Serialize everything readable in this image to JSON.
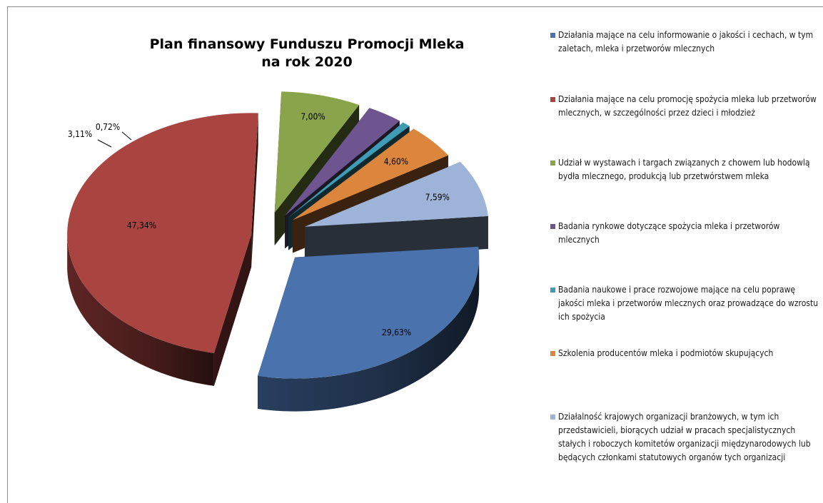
{
  "chart_data": {
    "type": "pie",
    "title_lines": [
      "Plan finansowy Funduszu Promocji Mleka",
      "na rok 2020"
    ],
    "legend_position": "right",
    "slices": [
      {
        "label": "Działania mające na celu informowanie o jakości i cechach, w tym zaletach, mleka i przetworów mlecznych",
        "value": 29.63,
        "display": "29,63%",
        "color": "#4a72ac"
      },
      {
        "label": "Działania mające na celu promocję spożycia mleka lub przetworów mlecznych, w szczególności przez dzieci i młodzież",
        "value": 47.34,
        "display": "47,34%",
        "color": "#a94441"
      },
      {
        "label": "Udział w wystawach i targach związanych z chowem lub hodowlą bydła mlecznego, produkcją lub przetwórstwem mleka",
        "value": 7.0,
        "display": "7,00%",
        "color": "#89a44a"
      },
      {
        "label": "Badania rynkowe dotyczące spożycia mleka i przetworów mlecznych",
        "value": 3.11,
        "display": "3,11%",
        "color": "#6e558f"
      },
      {
        "label": "Badania naukowe i prace rozwojowe mające na celu poprawę jakości mleka i przetworów mlecznych oraz prowadzące do wzrostu ich spożycia",
        "value": 0.72,
        "display": "0,72%",
        "color": "#3e9cb4"
      },
      {
        "label": "Szkolenia producentów mleka i podmiotów skupujących",
        "value": 4.6,
        "display": "4,60%",
        "color": "#dc853c"
      },
      {
        "label": "Działalność krajowych organizacji branżowych, w tym ich przedstawicieli, biorących udział w pracach specjalistycznych stałych i roboczych komitetów organizacji międzynarodowych lub będących członkami statutowych organów tych organizacji",
        "value": 7.59,
        "display": "7,59%",
        "color": "#9eb3d8"
      }
    ]
  }
}
